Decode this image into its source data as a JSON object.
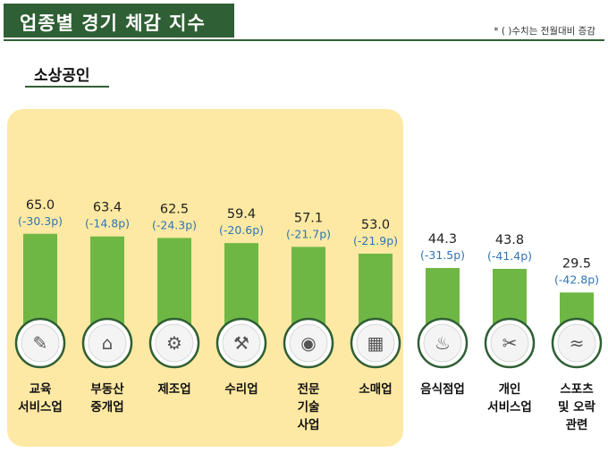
{
  "header": {
    "title": "업종별 경기 체감 지수",
    "note": "* ( )수치는 전월대비 증감"
  },
  "section": {
    "label": "소상공인"
  },
  "colors": {
    "header_bg": "#2f5f34",
    "bar": "#6fb744",
    "highlight": "#fde9a3",
    "change_text": "#2e74b5",
    "icon_ring": "#2f5f34"
  },
  "chart_data": {
    "type": "bar",
    "title": "",
    "xlabel": "",
    "ylabel": "",
    "grid": false,
    "categories": [
      [
        "교육",
        "서비스업"
      ],
      [
        "부동산",
        "중개업"
      ],
      [
        "제조업"
      ],
      [
        "수리업"
      ],
      [
        "전문",
        "기술",
        "사업"
      ],
      [
        "소매업"
      ],
      [
        "음식점업"
      ],
      [
        "개인",
        "서비스업"
      ],
      [
        "스포츠",
        "및 오락",
        "관련"
      ]
    ],
    "values": [
      65.0,
      63.4,
      62.5,
      59.4,
      57.1,
      53.0,
      44.3,
      43.8,
      29.5
    ],
    "value_labels": [
      "65.0",
      "63.4",
      "62.5",
      "59.4",
      "57.1",
      "53.0",
      "44.3",
      "43.8",
      "29.5"
    ],
    "change_labels": [
      "(-30.3p)",
      "(-14.8p)",
      "(-24.3p)",
      "(-20.6p)",
      "(-21.7p)",
      "(-21.9p)",
      "(-31.5p)",
      "(-41.4p)",
      "(-42.8p)"
    ],
    "changes": [
      -30.3,
      -14.8,
      -24.3,
      -20.6,
      -21.7,
      -21.9,
      -31.5,
      -41.4,
      -42.8
    ],
    "icons": [
      "teacher-icon",
      "realtor-icon",
      "factory-worker-icon",
      "repair-worker-icon",
      "camera-operator-icon",
      "shop-boxes-icon",
      "restaurant-icon",
      "hairdresser-icon",
      "swimmer-icon"
    ],
    "highlighted_count": 6
  }
}
